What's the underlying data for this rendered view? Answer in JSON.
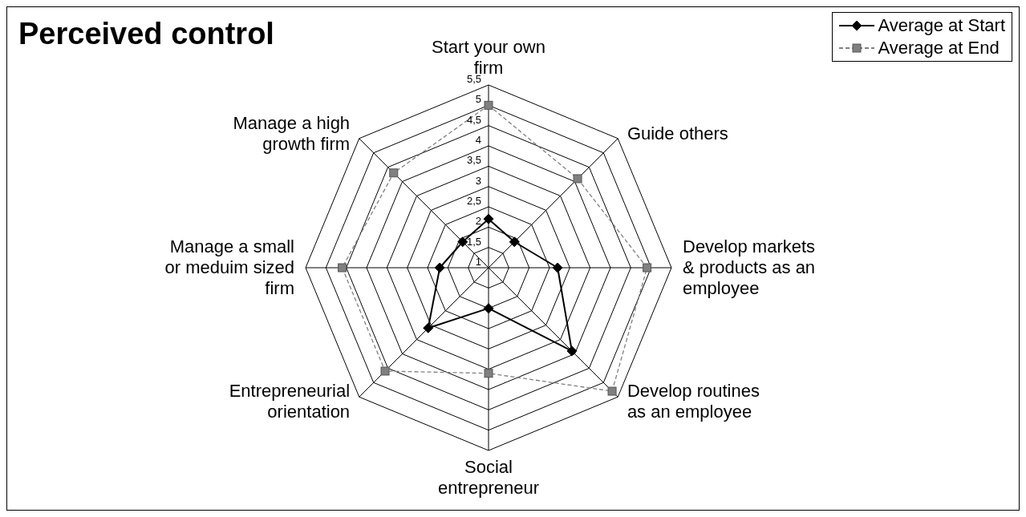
{
  "chart_data": {
    "type": "radar",
    "title": "Perceived control",
    "categories": [
      "Start your own firm",
      "Guide others",
      "Develop markets & products as an employee",
      "Develop routines as an employee",
      "Social entrepreneur",
      "Entrepreneurial orientation",
      "Manage a small or meduim sized firm",
      "Manage a high growth firm"
    ],
    "series": [
      {
        "name": "Average at Start",
        "color": "#000000",
        "marker": "diamond",
        "line_style": "solid",
        "values": [
          2.2,
          1.9,
          2.7,
          3.9,
          2.0,
          3.1,
          2.2,
          1.9
        ]
      },
      {
        "name": "Average at End",
        "color": "#808080",
        "marker": "square",
        "line_style": "dashed",
        "values": [
          5.0,
          4.1,
          4.9,
          5.3,
          3.6,
          4.6,
          4.6,
          4.3
        ]
      }
    ],
    "ylim": [
      1,
      5.5
    ],
    "yticks": [
      1,
      {
        "value": 1.5,
        "label": "1,5"
      },
      2,
      {
        "value": 2.5,
        "label": "2,5"
      },
      3,
      {
        "value": 3.5,
        "label": "3,5"
      },
      4,
      {
        "value": 4.5,
        "label": "4,5"
      },
      5,
      {
        "value": 5.5,
        "label": "5,5"
      }
    ],
    "grid": true,
    "legend": "top right"
  }
}
